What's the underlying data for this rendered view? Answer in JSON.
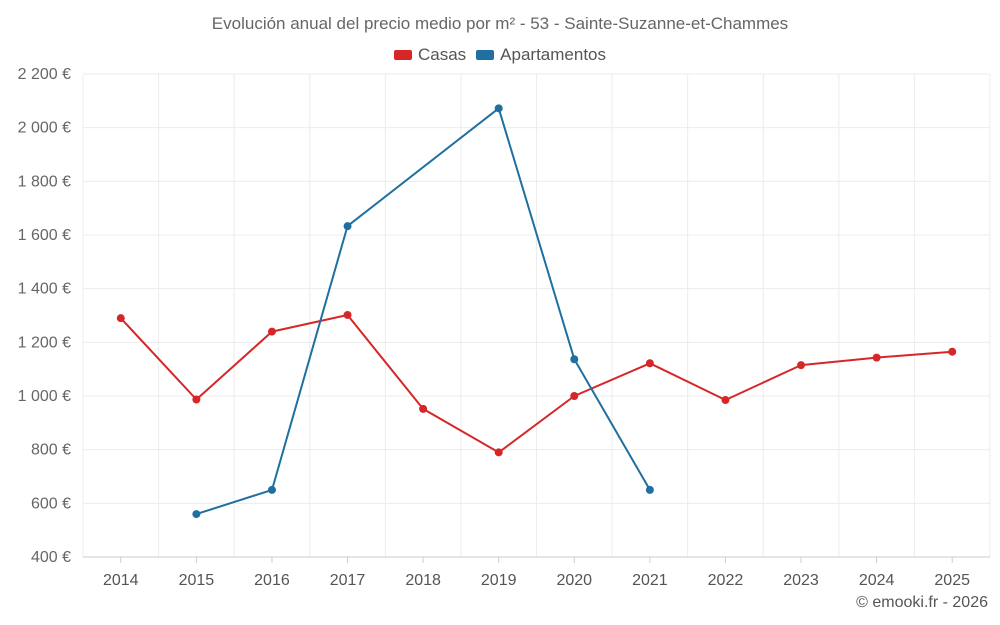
{
  "chart_data": {
    "type": "line",
    "title": "Evolución anual del precio medio por m² - 53 - Sainte-Suzanne-et-Chammes",
    "categories": [
      "2014",
      "2015",
      "2016",
      "2017",
      "2018",
      "2019",
      "2020",
      "2021",
      "2022",
      "2023",
      "2024",
      "2025"
    ],
    "ylim": [
      400,
      2200
    ],
    "yticks": [
      400,
      600,
      800,
      1000,
      1200,
      1400,
      1600,
      1800,
      2000,
      2200
    ],
    "ytick_labels": [
      "400 €",
      "600 €",
      "800 €",
      "1 000 €",
      "1 200 €",
      "1 400 €",
      "1 600 €",
      "1 800 €",
      "2 000 €",
      "2 200 €"
    ],
    "grid": true,
    "legend_position": "top-center",
    "series": [
      {
        "name": "Casas",
        "color": "#d62728",
        "values": [
          1290,
          987,
          1240,
          1302,
          952,
          790,
          1000,
          1122,
          985,
          1115,
          1143,
          1165
        ]
      },
      {
        "name": "Apartamentos",
        "color": "#1f6fa0",
        "values": [
          null,
          560,
          650,
          1633,
          null,
          2072,
          1137,
          650,
          null,
          null,
          null,
          null
        ]
      }
    ]
  },
  "credit": "© emooki.fr - 2026"
}
